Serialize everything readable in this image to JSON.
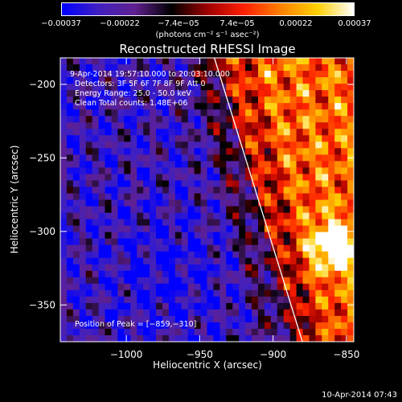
{
  "colorbar": {
    "ticks": [
      "-0.00037",
      "-0.00022",
      "-7.4e-05",
      "7.4e-05",
      "0.00022",
      "0.00037"
    ],
    "unit": "(photons cm⁻² s⁻¹ asec⁻²)",
    "colors": [
      "#0000ff",
      "#4020c0",
      "#602090",
      "#000000",
      "#a00000",
      "#ff2000",
      "#ff8000",
      "#ffd000",
      "#ffffff"
    ]
  },
  "chart_data": {
    "type": "heatmap",
    "title": "Reconstructed RHESSI Image",
    "xlabel": "Heliocentric X (arcsec)",
    "ylabel": "Heliocentric Y (arcsec)",
    "xlim": [
      -1045,
      -845
    ],
    "ylim": [
      -375,
      -182
    ],
    "xticks": [
      -1000,
      -950,
      -900,
      -850
    ],
    "yticks": [
      -200,
      -250,
      -300,
      -350
    ],
    "xtick_labels": [
      "-1000",
      "-950",
      "-900",
      "-850"
    ],
    "ytick_labels": [
      "-200",
      "-250",
      "-300",
      "-350"
    ],
    "value_range": [
      -0.00037,
      0.00037
    ],
    "peak": [
      -859,
      -310
    ],
    "limb_line": [
      [
        -940,
        -182
      ],
      [
        -880,
        -375
      ]
    ],
    "annotations": [
      "9-Apr-2014 19:57:10.000 to 20:03:10.000",
      "Detectors: 3F 5F 6F 7F 8F 9F Att 0",
      "Energy Range: 25.0 - 50.0 keV",
      "Clean     Total counts: 1.48E+06"
    ],
    "peak_label": "Position of Peak = [-859,-310]"
  },
  "footer": "10-Apr-2014 07:43"
}
